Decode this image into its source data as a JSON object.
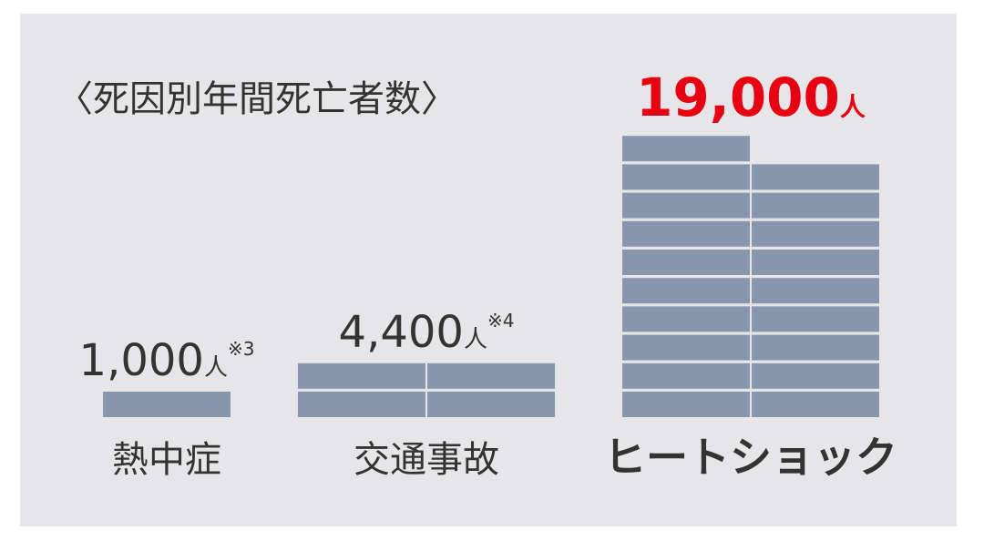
{
  "chart_data": {
    "type": "block",
    "title": "〈死因別年間死亡者数〉",
    "categories": [
      "熱中症",
      "交通事故",
      "ヒートショック"
    ],
    "values": [
      1000,
      4400,
      19000
    ],
    "value_labels": [
      "1,000",
      "4,400",
      "19,000"
    ],
    "unit": "人",
    "notes": [
      "※3",
      "※4",
      null
    ],
    "color": "#8796ad",
    "value_label_colors": [
      "#333333",
      "#333333",
      "#e60012"
    ]
  }
}
